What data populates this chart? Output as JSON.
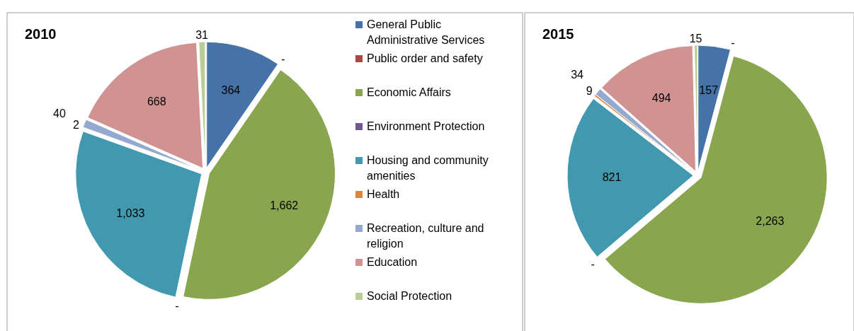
{
  "chart_data": {
    "type": "pie",
    "categories": [
      "General Public Administrative Services",
      "Public order and safety",
      "Economic Affairs",
      "Environment Protection",
      "Housing and community amenities",
      "Health",
      "Recreation, culture and religion",
      "Education",
      "Social Protection"
    ],
    "colors": [
      "#4572a7",
      "#aa4643",
      "#89a54e",
      "#71588f",
      "#4198af",
      "#db843d",
      "#93a9cf",
      "#d19392",
      "#b9cd96"
    ],
    "series": [
      {
        "name": "2010",
        "values": [
          364,
          0,
          1662,
          0,
          1033,
          2,
          40,
          668,
          31
        ],
        "value_labels": [
          "364",
          "-",
          "1,662",
          "-",
          "1,033",
          "2",
          "40",
          "668",
          "31"
        ]
      },
      {
        "name": "2015",
        "values": [
          157,
          0,
          2263,
          0,
          821,
          9,
          34,
          494,
          15
        ],
        "value_labels": [
          "157",
          "-",
          "2,263",
          "-",
          "821",
          "9",
          "34",
          "494",
          "15"
        ]
      }
    ],
    "legend": "right"
  }
}
